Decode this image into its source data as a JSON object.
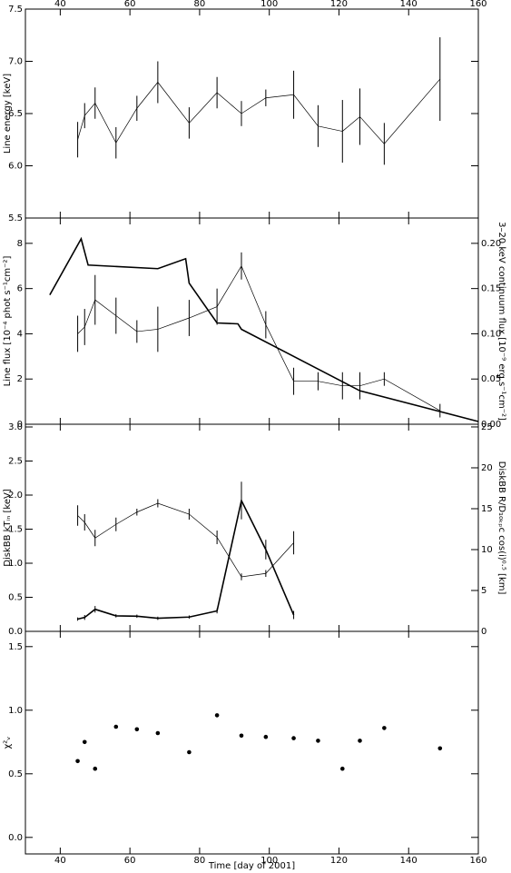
{
  "chart_data": [
    {
      "type": "line",
      "ylabel": "Line energy [keV]",
      "xlim": [
        30,
        160
      ],
      "xticks": [
        40,
        60,
        80,
        100,
        120,
        140,
        160
      ],
      "xtick_labels": "top",
      "ylim": [
        5.5,
        7.5
      ],
      "yticks": [
        {
          "value": 5.5,
          "label": "5.5"
        },
        {
          "value": 6,
          "label": "6.0"
        },
        {
          "value": 6.5,
          "label": "6.5"
        },
        {
          "value": 7,
          "label": "7.0"
        },
        {
          "value": 7.5,
          "label": "7.5"
        }
      ],
      "series": [
        {
          "color": "#000000",
          "style": "thin",
          "x": [
            45,
            47,
            50,
            56,
            62,
            68,
            77,
            85,
            92,
            99,
            107,
            114,
            121,
            126,
            133,
            149
          ],
          "values": [
            6.25,
            6.48,
            6.6,
            6.22,
            6.55,
            6.8,
            6.41,
            6.7,
            6.5,
            6.65,
            6.68,
            6.38,
            6.33,
            6.47,
            6.21,
            6.83
          ],
          "errors": [
            0.17,
            0.12,
            0.15,
            0.15,
            0.12,
            0.2,
            0.15,
            0.15,
            0.12,
            0.08,
            0.23,
            0.2,
            0.3,
            0.27,
            0.2,
            0.4
          ]
        }
      ]
    },
    {
      "type": "line",
      "ylabel": "Line flux [10⁻⁴ phot s⁻¹cm⁻²]",
      "y2label": "3–20 keV continuum flux [10⁻⁹ erg s⁻¹cm⁻²]",
      "xlim": [
        30,
        160
      ],
      "xticks": [
        40,
        60,
        80,
        100,
        120,
        140,
        160
      ],
      "xtick_labels": "none",
      "ylim": [
        0,
        9.12
      ],
      "yticks": [
        0,
        2,
        4,
        6,
        8
      ],
      "y2lim": [
        0,
        0.228
      ],
      "y2ticks": [
        {
          "value": 0,
          "label": "0.00"
        },
        {
          "value": 0.05,
          "label": "0.05"
        },
        {
          "value": 0.1,
          "label": "0.10"
        },
        {
          "value": 0.15,
          "label": "0.15"
        },
        {
          "value": 0.2,
          "label": "0.20"
        }
      ],
      "series": [
        {
          "color": "#000000",
          "style": "thin",
          "x": [
            45,
            47,
            50,
            56,
            62,
            68,
            77,
            85,
            92,
            99,
            107,
            114,
            121,
            126,
            133,
            149
          ],
          "values": [
            4.0,
            4.3,
            5.5,
            4.8,
            4.1,
            4.2,
            4.7,
            5.2,
            7.0,
            4.4,
            1.9,
            1.9,
            1.7,
            1.7,
            2.0,
            0.6
          ],
          "errors": [
            0.8,
            0.8,
            1.1,
            0.8,
            0.5,
            1.0,
            0.8,
            0.8,
            0.6,
            0.6,
            0.6,
            0.4,
            0.6,
            0.6,
            0.3,
            0.3
          ]
        },
        {
          "color": "#000000",
          "style": "thick",
          "axis": "y2",
          "x": [
            37,
            46,
            48,
            68,
            76,
            77,
            85,
            91,
            92,
            126,
            160
          ],
          "values": [
            0.143,
            0.205,
            0.176,
            0.172,
            0.183,
            0.156,
            0.112,
            0.111,
            0.105,
            0.037,
            0.003
          ]
        }
      ]
    },
    {
      "type": "line",
      "ylabel": "DiskBB kTᵢₙ [keV]",
      "y2label": "DiskBB R/D₁₀ₖₚc cos(i)⁰·⁵ [km]",
      "xlim": [
        30,
        160
      ],
      "xticks": [
        40,
        60,
        80,
        100,
        120,
        140,
        160
      ],
      "xtick_labels": "none",
      "ylim": [
        0,
        3.04
      ],
      "yticks": [
        {
          "value": 0,
          "label": "0.0"
        },
        {
          "value": 0.5,
          "label": "0.5"
        },
        {
          "value": 1,
          "label": "1.0"
        },
        {
          "value": 1.5,
          "label": "1.5"
        },
        {
          "value": 2,
          "label": "2.0"
        },
        {
          "value": 2.5,
          "label": "2.5"
        },
        {
          "value": 3,
          "label": "3.0"
        }
      ],
      "y2lim": [
        0,
        25.33
      ],
      "y2ticks": [
        0,
        5,
        10,
        15,
        20,
        25
      ],
      "series": [
        {
          "color": "#000000",
          "style": "thin",
          "x": [
            45,
            47,
            50,
            56,
            62,
            68,
            77,
            85,
            92,
            99,
            107
          ],
          "values": [
            1.7,
            1.6,
            1.37,
            1.57,
            1.75,
            1.88,
            1.72,
            1.38,
            0.8,
            0.85,
            1.3
          ],
          "errors": [
            0.15,
            0.12,
            0.12,
            0.1,
            0.05,
            0.06,
            0.08,
            0.1,
            0.05,
            0.05,
            0.17
          ]
        },
        {
          "color": "#000000",
          "style": "thick",
          "axis": "y2",
          "x": [
            45,
            47,
            50,
            56,
            62,
            68,
            77,
            85,
            92,
            99,
            107
          ],
          "values": [
            1.5,
            1.7,
            2.7,
            1.9,
            1.85,
            1.6,
            1.75,
            2.5,
            16,
            10,
            2.0
          ],
          "errors": [
            0.2,
            0.3,
            0.4,
            0.2,
            0.2,
            0.2,
            0.2,
            0.3,
            2.3,
            1.2,
            0.5
          ]
        }
      ]
    },
    {
      "type": "scatter",
      "ylabel": "χ²ᵥ",
      "xlabel": "Time [day of 2001]",
      "xlim": [
        30,
        160
      ],
      "xticks": [
        40,
        60,
        80,
        100,
        120,
        140,
        160
      ],
      "xtick_labels": "bottom",
      "ylim": [
        -0.13,
        1.62
      ],
      "yticks": [
        {
          "value": 0,
          "label": "0.0"
        },
        {
          "value": 0.5,
          "label": "0.5"
        },
        {
          "value": 1,
          "label": "1.0"
        },
        {
          "value": 1.5,
          "label": "1.5"
        }
      ],
      "series": [
        {
          "color": "#000000",
          "x": [
            45,
            47,
            50,
            56,
            62,
            68,
            77,
            85,
            92,
            99,
            107,
            114,
            121,
            126,
            133,
            149
          ],
          "values": [
            0.6,
            0.75,
            0.54,
            0.87,
            0.85,
            0.82,
            0.67,
            0.96,
            0.8,
            0.79,
            0.78,
            0.76,
            0.54,
            0.76,
            0.86,
            0.7
          ]
        }
      ]
    }
  ]
}
